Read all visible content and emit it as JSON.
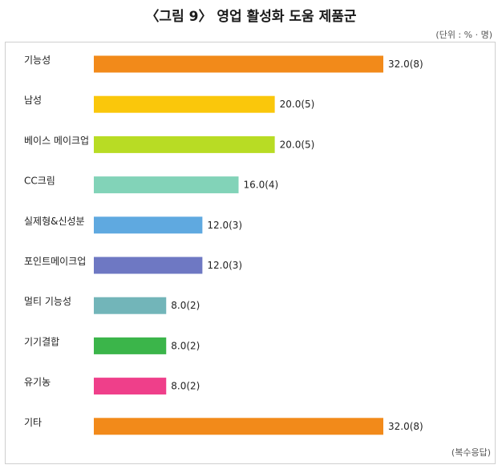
{
  "header": {
    "title": "〈그림 9〉 영업 활성화 도움 제품군",
    "unit": "(단위 : % · 명)"
  },
  "footer": {
    "note": "(복수응답)"
  },
  "chart_data": {
    "type": "bar",
    "orientation": "horizontal",
    "categories": [
      "기능성",
      "남성",
      "베이스 메이크업",
      "CC크림",
      "실제형&신성분",
      "포인트메이크업",
      "멀티 기능성",
      "기기결합",
      "유기농",
      "기타"
    ],
    "values": [
      32.0,
      20.0,
      20.0,
      16.0,
      12.0,
      12.0,
      8.0,
      8.0,
      8.0,
      32.0
    ],
    "counts": [
      8,
      5,
      5,
      4,
      3,
      3,
      2,
      2,
      2,
      8
    ],
    "value_labels": [
      "32.0(8)",
      "20.0(5)",
      "20.0(5)",
      "16.0(4)",
      "12.0(3)",
      "12.0(3)",
      "8.0(2)",
      "8.0(2)",
      "8.0(2)",
      "32.0(8)"
    ],
    "colors": [
      "#f28a1a",
      "#fac70b",
      "#b8dc24",
      "#82d3b8",
      "#5fa9e0",
      "#6e78c3",
      "#72b5b9",
      "#3bb54a",
      "#ef3f8a",
      "#f28a1a"
    ],
    "xlim": [
      0,
      32
    ],
    "grid": false,
    "legend": "none"
  }
}
